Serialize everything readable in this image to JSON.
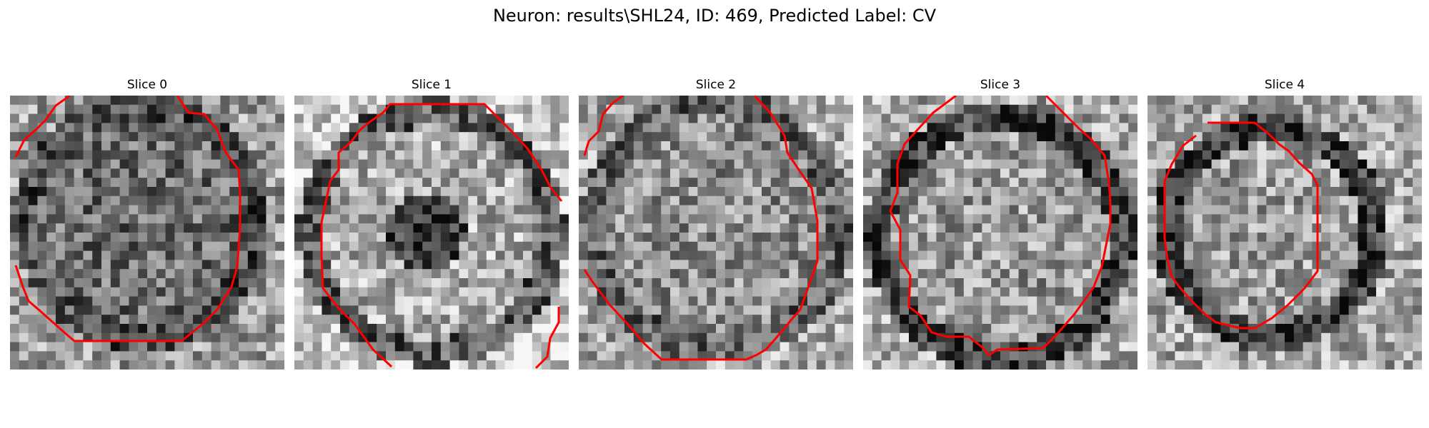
{
  "figure": {
    "title": "Neuron: results\\SHL24, ID: 469, Predicted Label: CV"
  },
  "slices": [
    {
      "title": "Slice 0"
    },
    {
      "title": "Slice 1"
    },
    {
      "title": "Slice 2"
    },
    {
      "title": "Slice 3"
    },
    {
      "title": "Slice 4"
    }
  ],
  "colors": {
    "contour": "#ff0000",
    "background": "#ffffff",
    "text": "#000000"
  },
  "image_style": "grayscale micrograph"
}
